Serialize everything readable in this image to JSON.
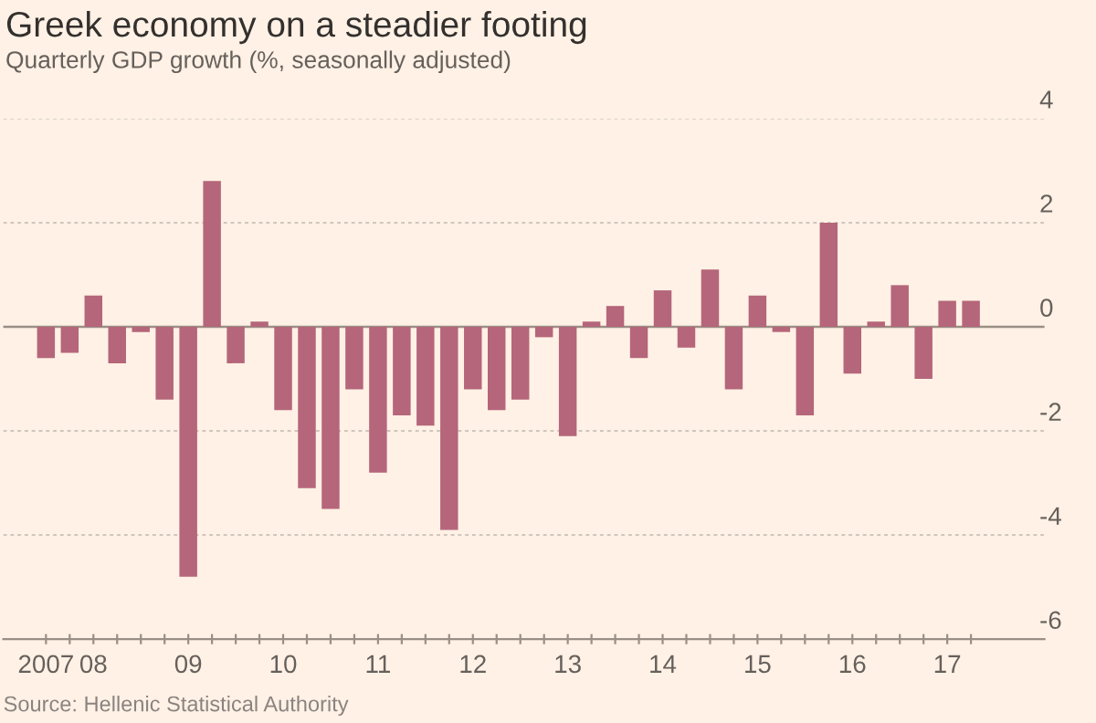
{
  "chart_data": {
    "type": "bar",
    "title": "Greek economy on a steadier footing",
    "subtitle": "Quarterly GDP growth (%, seasonally adjusted)",
    "categories": [
      "2007",
      null,
      "08",
      null,
      null,
      null,
      "09",
      null,
      null,
      null,
      "10",
      null,
      null,
      null,
      "11",
      null,
      null,
      null,
      "12",
      null,
      null,
      null,
      "13",
      null,
      null,
      null,
      "14",
      null,
      null,
      null,
      "15",
      null,
      null,
      null,
      "16",
      null,
      null,
      null,
      "17",
      null
    ],
    "values": [
      -0.6,
      -0.5,
      0.6,
      -0.7,
      -0.1,
      -1.4,
      -4.8,
      2.8,
      -0.7,
      0.1,
      -1.6,
      -3.1,
      -3.5,
      -1.2,
      -2.8,
      -1.7,
      -1.9,
      -3.9,
      -1.2,
      -1.6,
      -1.4,
      -0.2,
      -2.1,
      0.1,
      0.4,
      -0.6,
      0.7,
      -0.4,
      1.1,
      -1.2,
      0.6,
      -0.1,
      -1.7,
      2.0,
      -0.9,
      0.1,
      0.8,
      -1.0,
      0.5,
      0.5
    ],
    "color": "#b5667a",
    "ylim": [
      -6,
      4
    ],
    "yticks": [
      -6,
      -4,
      -2,
      0,
      2,
      4
    ],
    "grid": "y",
    "ref_lines": [
      {
        "axis": "y",
        "value": 0,
        "color": "#9a8f86"
      }
    ],
    "annotations": [
      "Source: Hellenic Statistical Authority"
    ]
  }
}
